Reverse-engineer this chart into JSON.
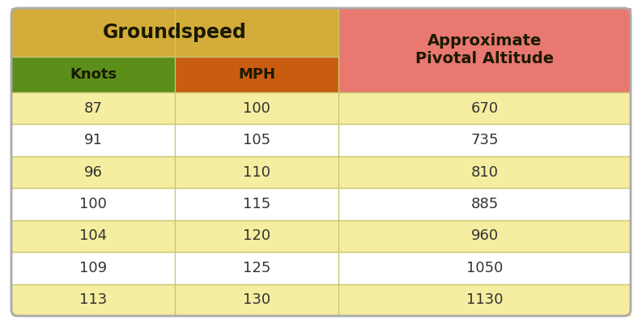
{
  "title_groundspeed": "Groundspeed",
  "title_pivotal": "Approximate\nPivotal Altitude",
  "col_headers": [
    "Knots",
    "MPH"
  ],
  "rows": [
    [
      87,
      100,
      670
    ],
    [
      91,
      105,
      735
    ],
    [
      96,
      110,
      810
    ],
    [
      100,
      115,
      885
    ],
    [
      104,
      120,
      960
    ],
    [
      109,
      125,
      1050
    ],
    [
      113,
      130,
      1130
    ]
  ],
  "color_header_gs": "#D4AC3A",
  "color_header_knots": "#5C8E1A",
  "color_header_mph": "#C85C10",
  "color_header_pivotal": "#E87870",
  "color_row_odd": "#F5EDA0",
  "color_row_even": "#FFFFFF",
  "color_divider": "#C8C870",
  "color_text_dark": "#1A1A00",
  "color_text_data": "#333333",
  "fig_bg": "#FFFFFF"
}
